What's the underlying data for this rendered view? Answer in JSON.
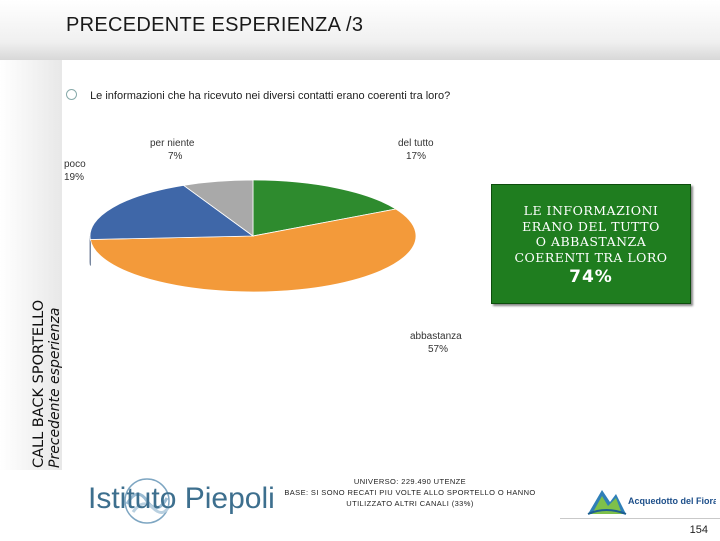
{
  "header": {
    "title": "PRECEDENTE ESPERIENZA /3"
  },
  "sidebar": {
    "main_label": "CALL BACK SPORTELLO",
    "sub_label": "Precedente esperienza"
  },
  "question": "Le informazioni che ha ricevuto nei diversi contatti erano coerenti tra loro?",
  "chart_data": {
    "type": "pie",
    "slices": [
      {
        "label": "del tutto",
        "value": 17,
        "value_label": "17%",
        "color": "#2e8b2e"
      },
      {
        "label": "abbastanza",
        "value": 57,
        "value_label": "57%",
        "color": "#f39a3a"
      },
      {
        "label": "poco",
        "value": 19,
        "value_label": "19%",
        "color": "#3f67a8"
      },
      {
        "label": "per niente",
        "value": 7,
        "value_label": "7%",
        "color": "#a9a9a9"
      }
    ]
  },
  "summary": {
    "line1": "LE INFORMAZIONI",
    "line2": "ERANO DEL TUTTO",
    "line3": "O ABBASTANZA",
    "line4": "COERENTI TRA LORO",
    "value": "74%"
  },
  "footer": {
    "universe": "UNIVERSO: 229.490 UTENZE",
    "base_line1": "BASE: SI SONO RECATI PIU VOLTE ALLO SPORTELLO O HANNO",
    "base_line2": "UTILIZZATO ALTRI CANALI (33%)"
  },
  "logos": {
    "piepoli": "Istituto Piepoli",
    "acquedotto": "Acquedotto del Fiora"
  },
  "page_number": "154"
}
